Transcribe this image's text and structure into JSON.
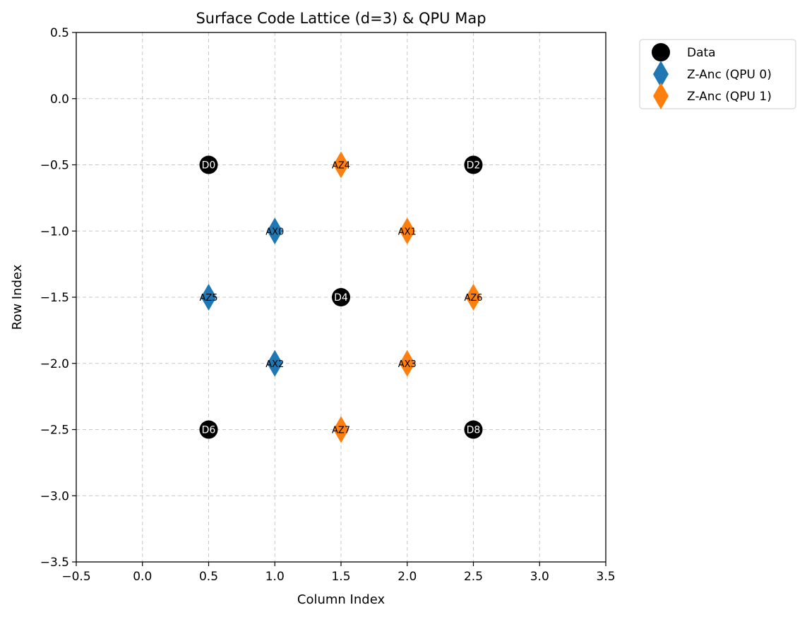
{
  "chart_data": {
    "type": "scatter",
    "title": "Surface Code Lattice (d=3) & QPU Map",
    "xlabel": "Column Index",
    "ylabel": "Row Index",
    "xlim": [
      -0.5,
      3.5
    ],
    "ylim": [
      -3.5,
      0.5
    ],
    "xticks": [
      -0.5,
      0.0,
      0.5,
      1.0,
      1.5,
      2.0,
      2.5,
      3.0,
      3.5
    ],
    "xtick_labels": [
      "−0.5",
      "0.0",
      "0.5",
      "1.0",
      "1.5",
      "2.0",
      "2.5",
      "3.0",
      "3.5"
    ],
    "yticks": [
      0.5,
      0.0,
      -0.5,
      -1.0,
      -1.5,
      -2.0,
      -2.5,
      -3.0,
      -3.5
    ],
    "ytick_labels": [
      "0.5",
      "0.0",
      "−0.5",
      "−1.0",
      "−1.5",
      "−2.0",
      "−2.5",
      "−3.0",
      "−3.5"
    ],
    "grid": true,
    "legend_position": "outside-top-right",
    "series": [
      {
        "name": "Data",
        "marker": "circle",
        "color": "#000000",
        "label_color": "#ffffff",
        "points": [
          {
            "x": 0.5,
            "y": -0.5,
            "label": "D0"
          },
          {
            "x": 2.5,
            "y": -0.5,
            "label": "D2"
          },
          {
            "x": 1.5,
            "y": -1.5,
            "label": "D4"
          },
          {
            "x": 0.5,
            "y": -2.5,
            "label": "D6"
          },
          {
            "x": 2.5,
            "y": -2.5,
            "label": "D8"
          }
        ]
      },
      {
        "name": "Z-Anc (QPU 0)",
        "marker": "diamond",
        "color": "#1f77b4",
        "label_color": "#000000",
        "points": [
          {
            "x": 1.0,
            "y": -1.0,
            "label": "AX0"
          },
          {
            "x": 0.5,
            "y": -1.5,
            "label": "AZ5"
          },
          {
            "x": 1.0,
            "y": -2.0,
            "label": "AX2"
          }
        ]
      },
      {
        "name": "Z-Anc (QPU 1)",
        "marker": "diamond",
        "color": "#ff7f0e",
        "label_color": "#000000",
        "points": [
          {
            "x": 1.5,
            "y": -0.5,
            "label": "AZ4"
          },
          {
            "x": 2.0,
            "y": -1.0,
            "label": "AX1"
          },
          {
            "x": 2.5,
            "y": -1.5,
            "label": "AZ6"
          },
          {
            "x": 2.0,
            "y": -2.0,
            "label": "AX3"
          },
          {
            "x": 1.5,
            "y": -2.5,
            "label": "AZ7"
          }
        ]
      }
    ]
  }
}
